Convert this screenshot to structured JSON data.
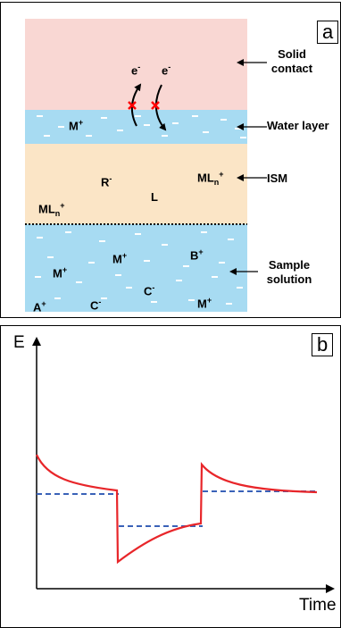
{
  "panel_a": {
    "tag": "a",
    "layers": {
      "solid_contact": "Solid contact",
      "water_layer": "Water layer",
      "ism": "ISM",
      "sample_solution_line1": "Sample",
      "sample_solution_line2": "solution"
    },
    "species": {
      "electron": "e",
      "electron_charge": "-",
      "m": "M",
      "plus": "+",
      "minus": "-",
      "r": "R",
      "l": "L",
      "ml": "ML",
      "n": "n",
      "b": "B",
      "c": "C",
      "a": "A"
    },
    "colors": {
      "solid_contact": "#f9d7d3",
      "water": "#a7dbf2",
      "ism": "#fbe5c6",
      "block_marker": "#ff0000"
    }
  },
  "panel_b": {
    "tag": "b",
    "ylabel": "E",
    "xlabel": "Time",
    "colors": {
      "potential": "#e8262a",
      "equilibrium": "#3a62b8"
    }
  }
}
